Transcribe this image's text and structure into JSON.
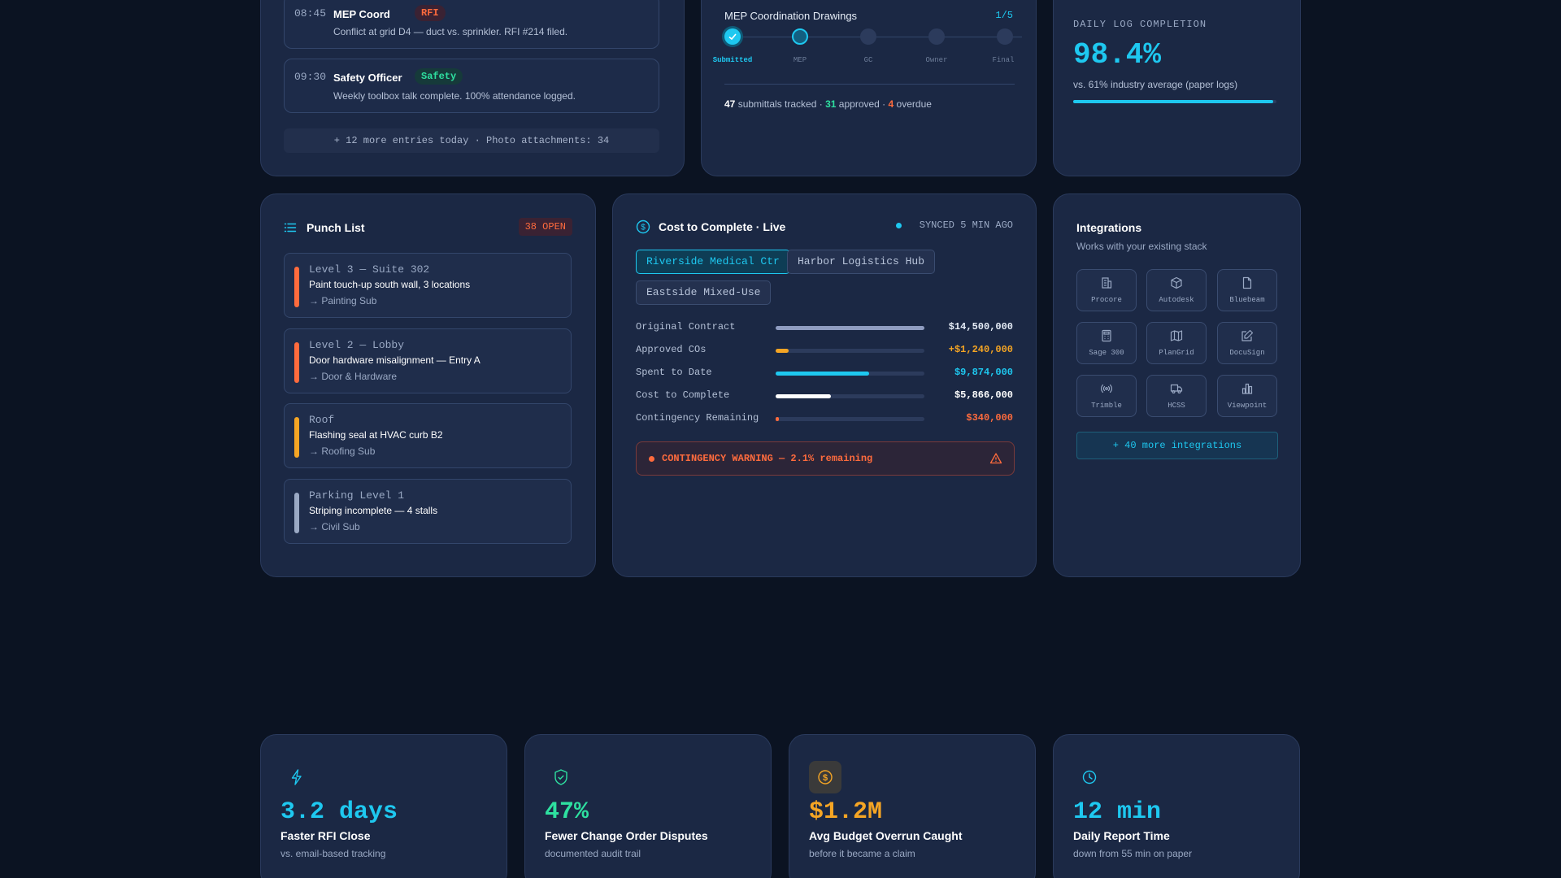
{
  "colors": {
    "accent_cyan": "#1ec8f0",
    "accent_green": "#2ee0a0",
    "accent_orange": "#ff6b3d",
    "accent_amber": "#f5a524",
    "background": "#0b1322",
    "card": "#1b2844"
  },
  "daily_log": {
    "entries": [
      {
        "time": "08:45",
        "role": "MEP Coord",
        "tag": "RFI",
        "message": "Conflict at grid D4 — duct vs. sprinkler. RFI #214 filed."
      },
      {
        "time": "09:30",
        "role": "Safety Officer",
        "tag": "Safety",
        "message": "Weekly toolbox talk complete. 100% attendance logged."
      }
    ],
    "more_text": "+ 12 more entries today · Photo attachments: 34"
  },
  "submittal": {
    "title": "MEP Coordination Drawings",
    "progress": "1/5",
    "steps": [
      "Submitted",
      "MEP",
      "GC",
      "Owner",
      "Final"
    ],
    "summary": {
      "tracked": "47",
      "tracked_label": "submittals tracked ·",
      "approved": "31",
      "approved_label": "approved ·",
      "overdue": "4",
      "overdue_label": "overdue"
    }
  },
  "completion": {
    "label": "DAILY LOG COMPLETION",
    "value": "98.4%",
    "sub": "vs. 61% industry average (paper logs)",
    "fill_percent": 98.4
  },
  "punch_list": {
    "title": "Punch List",
    "badge": "38 OPEN",
    "items": [
      {
        "location": "Level 3 — Suite 302",
        "description": "Paint touch-up south wall, 3 locations",
        "sub": "→ Painting Sub",
        "color": "#ff6b3d"
      },
      {
        "location": "Level 2 — Lobby",
        "description": "Door hardware misalignment — Entry A",
        "sub": "→ Door & Hardware",
        "color": "#ff6b3d"
      },
      {
        "location": "Roof",
        "description": "Flashing seal at HVAC curb B2",
        "sub": "→ Roofing Sub",
        "color": "#f5a524"
      },
      {
        "location": "Parking Level 1",
        "description": "Striping incomplete — 4 stalls",
        "sub": "→ Civil Sub",
        "color": "#9aa9c4"
      }
    ]
  },
  "cost": {
    "title": "Cost to Complete · Live",
    "sync": "SYNCED 5 MIN AGO",
    "projects": [
      "Riverside Medical Ctr",
      "Harbor Logistics Hub",
      "Eastside Mixed-Use"
    ],
    "rows": [
      {
        "label": "Original Contract",
        "value": "$14,500,000",
        "fill": 100,
        "color": "#8f9cc0",
        "text_color": "#e6edf7"
      },
      {
        "label": "Approved COs",
        "value": "+$1,240,000",
        "fill": 8.6,
        "color": "#f5a524",
        "text_color": "#f5a524"
      },
      {
        "label": "Spent to Date",
        "value": "$9,874,000",
        "fill": 63,
        "color": "#1ec8f0",
        "text_color": "#1ec8f0"
      },
      {
        "label": "Cost to Complete",
        "value": "$5,866,000",
        "fill": 37,
        "color": "#ffffff",
        "text_color": "#ffffff"
      },
      {
        "label": "Contingency Remaining",
        "value": "$340,000",
        "fill": 2.1,
        "color": "#ff6b3d",
        "text_color": "#ff6b3d"
      }
    ],
    "warning": "CONTINGENCY WARNING — 2.1% remaining"
  },
  "integrations": {
    "title": "Integrations",
    "subtitle": "Works with your existing stack",
    "tiles": [
      "Procore",
      "Autodesk",
      "Bluebeam",
      "Sage 300",
      "PlanGrid",
      "DocuSign",
      "Trimble",
      "HCSS",
      "Viewpoint"
    ],
    "more": "+ 40 more integrations"
  },
  "stats": [
    {
      "value": "3.2 days",
      "title": "Faster RFI Close",
      "sub": "vs. email-based tracking",
      "color": "#1ec8f0",
      "icon": "bolt-icon"
    },
    {
      "value": "47%",
      "title": "Fewer Change Order Disputes",
      "sub": "documented audit trail",
      "color": "#2ee0a0",
      "icon": "shield-check-icon"
    },
    {
      "value": "$1.2M",
      "title": "Avg Budget Overrun Caught",
      "sub": "before it became a claim",
      "color": "#f5a524",
      "icon": "dollar-icon"
    },
    {
      "value": "12 min",
      "title": "Daily Report Time",
      "sub": "down from 55 min on paper",
      "color": "#1ec8f0",
      "icon": "clock-icon"
    }
  ]
}
